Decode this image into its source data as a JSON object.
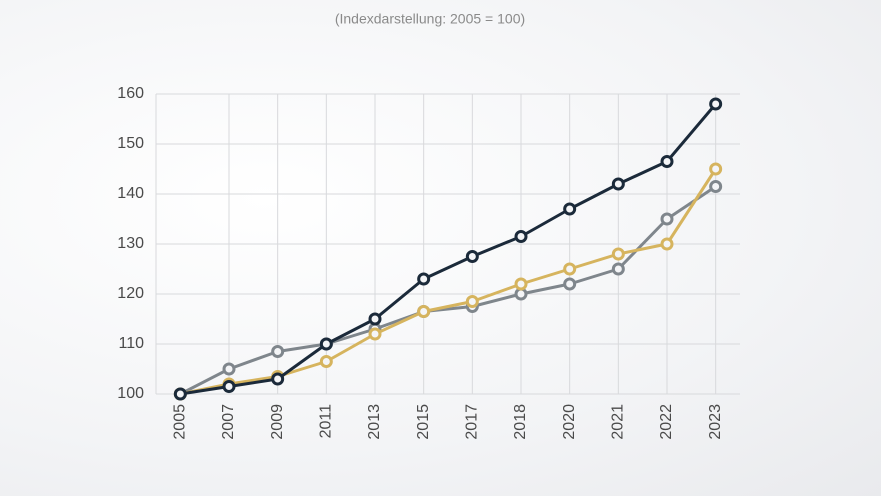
{
  "chart_data": {
    "type": "line",
    "subtitle": "(Indexdarstellung: 2005 = 100)",
    "categories": [
      "2005",
      "2007",
      "2009",
      "2011",
      "2013",
      "2015",
      "2017",
      "2018",
      "2020",
      "2021",
      "2022",
      "2023"
    ],
    "series": [
      {
        "color": "#7f868c",
        "values": [
          100,
          105,
          108.5,
          110,
          113,
          116.5,
          117.5,
          120,
          122,
          125,
          135,
          141.5
        ]
      },
      {
        "color": "#d6b45e",
        "values": [
          100,
          102,
          103.5,
          106.5,
          112,
          116.5,
          118.5,
          122,
          125,
          128,
          130,
          145
        ]
      },
      {
        "color": "#1b2a3a",
        "values": [
          100,
          101.5,
          103,
          110,
          115,
          123,
          127.5,
          131.5,
          137,
          142,
          146.5,
          158
        ]
      }
    ],
    "ylim": [
      100,
      160
    ],
    "yticks": [
      100,
      110,
      120,
      130,
      140,
      150,
      160
    ],
    "grid": true
  }
}
